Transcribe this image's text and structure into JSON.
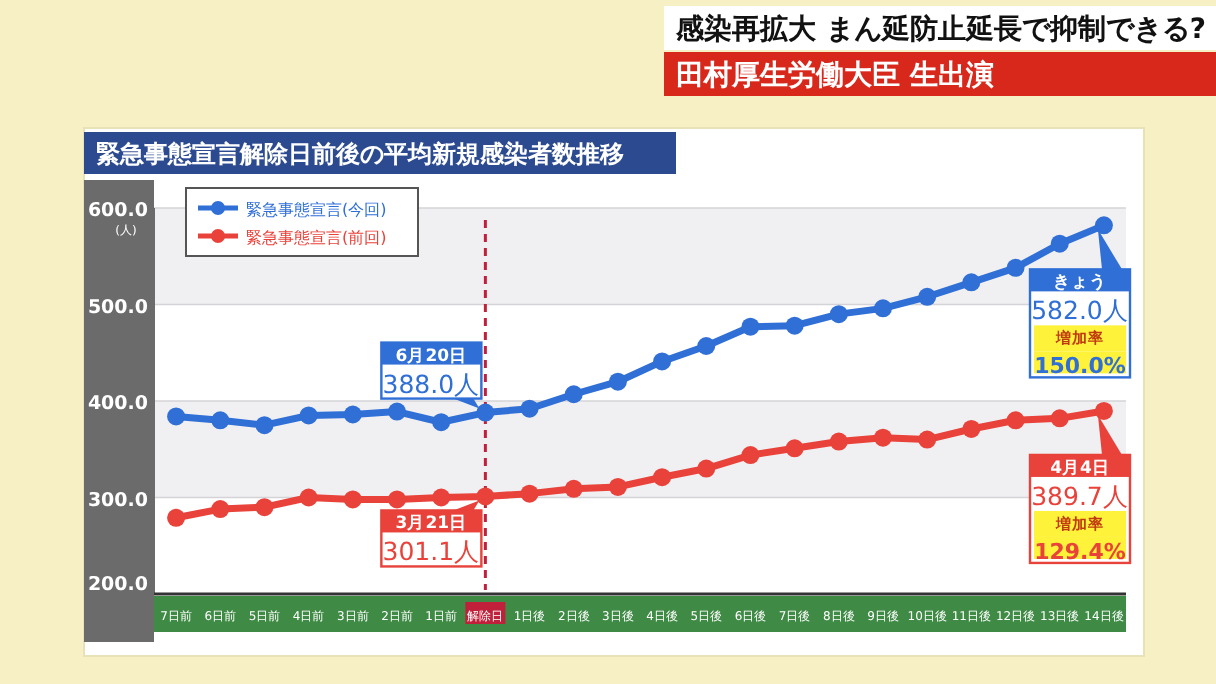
{
  "chart_data": {
    "type": "line",
    "title": "緊急事態宣言解除日前後の平均新規感染者数推移",
    "ylabel": "(人)",
    "categories": [
      "7日前",
      "6日前",
      "5日前",
      "4日前",
      "3日前",
      "2日前",
      "1日前",
      "解除日",
      "1日後",
      "2日後",
      "3日後",
      "4日後",
      "5日後",
      "6日後",
      "7日後",
      "8日後",
      "9日後",
      "10日後",
      "11日後",
      "12日後",
      "13日後",
      "14日後"
    ],
    "series": [
      {
        "name": "緊急事態宣言(今回)",
        "color": "#2f6fd6",
        "values": [
          384,
          380,
          375,
          385,
          386,
          389,
          378,
          388,
          392,
          407,
          420,
          441,
          457,
          477,
          478,
          490,
          496,
          508,
          523,
          538,
          563,
          582
        ]
      },
      {
        "name": "緊急事態宣言(前回)",
        "color": "#e8423a",
        "values": [
          279,
          288,
          290,
          300,
          298,
          298,
          300,
          301.1,
          304,
          309,
          311,
          321,
          330,
          344,
          351,
          358,
          362,
          360,
          371,
          380,
          382,
          389.7
        ]
      }
    ],
    "ylim": [
      200,
      600
    ],
    "yticks": [
      {
        "value": 200,
        "label": "200.0"
      },
      {
        "value": 300,
        "label": "300.0"
      },
      {
        "value": 400,
        "label": "400.0"
      },
      {
        "value": 500,
        "label": "500.0"
      },
      {
        "value": 600,
        "label": "600.0"
      }
    ],
    "grid": "y",
    "legend": "top left",
    "marker": "circle",
    "line_style": "solid",
    "ref_lines": [
      {
        "axis": "x",
        "value": "解除日",
        "color": "#c0203a",
        "line_style": "dashed"
      }
    ],
    "annotations": [
      "感染再拡大 まん延防止延長で抑制できる?",
      "田村厚生労働大臣 生出演",
      {
        "text": "6月20日",
        "x": "解除日",
        "y": 388
      },
      {
        "text": "388.0人",
        "x": "解除日",
        "y": 388
      },
      {
        "text": "3月21日",
        "x": "解除日",
        "y": 301.1
      },
      {
        "text": "301.1人",
        "x": "解除日",
        "y": 301.1
      },
      {
        "text": "きょう",
        "x": "14日後",
        "y": 582
      },
      {
        "text": "582.0人",
        "x": "14日後",
        "y": 582
      },
      "増加率",
      "150.0%",
      {
        "text": "4月4日",
        "x": "14日後",
        "y": 389.7
      },
      {
        "text": "389.7人",
        "x": "14日後",
        "y": 389.7
      },
      "増加率",
      "129.4%"
    ]
  }
}
